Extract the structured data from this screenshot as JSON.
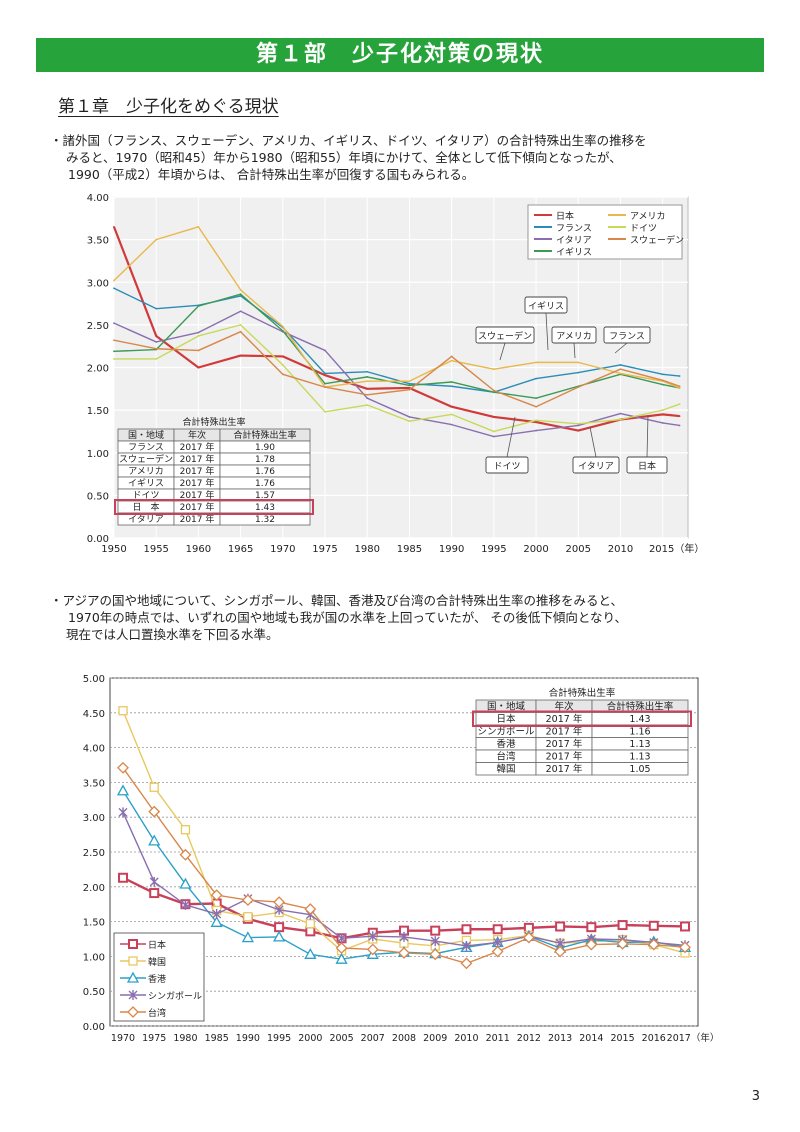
{
  "banner": "第１部　少子化対策の現状",
  "chapter": "第１章　少子化をめぐる現状",
  "para1": {
    "line1": "・諸外国（フランス、スウェーデン、アメリカ、イギリス、ドイツ、イタリア）の合計特殊出生率の推移を",
    "line2": "みると、1970（昭和45）年から1980（昭和55）年頃にかけて、全体として低下傾向となったが、",
    "line3": "1990（平成2）年頃からは、 合計特殊出生率が回復する国もみられる。"
  },
  "para2": {
    "line1": "・アジアの国や地域について、シンガポール、韓国、香港及び台湾の合計特殊出生率の推移をみると、",
    "line2": "1970年の時点では、いずれの国や地域も我が国の水準を上回っていたが、 その後低下傾向となり、",
    "line3": "現在では人口置換水準を下回る水準。"
  },
  "page_number": "3",
  "chart_data": [
    {
      "type": "line",
      "x": [
        1950,
        1955,
        1960,
        1965,
        1970,
        1975,
        1980,
        1985,
        1990,
        1995,
        2000,
        2005,
        2010,
        2015,
        2017
      ],
      "x_ticks": [
        "1950",
        "1955",
        "1960",
        "1965",
        "1970",
        "1975",
        "1980",
        "1985",
        "1990",
        "1995",
        "2000",
        "2005",
        "2010",
        "2015（年）"
      ],
      "y_ticks": [
        "0.00",
        "0.50",
        "1.00",
        "1.50",
        "2.00",
        "2.50",
        "3.00",
        "3.50",
        "4.00"
      ],
      "ylim": [
        0,
        4.0
      ],
      "grid": true,
      "legend": "top-right",
      "series": [
        {
          "name": "日本",
          "color": "#d03a3a",
          "values": [
            3.65,
            2.37,
            2.0,
            2.14,
            2.13,
            1.91,
            1.75,
            1.76,
            1.54,
            1.42,
            1.36,
            1.26,
            1.39,
            1.45,
            1.43
          ]
        },
        {
          "name": "フランス",
          "color": "#2a8cb8",
          "values": [
            2.93,
            2.69,
            2.73,
            2.84,
            2.47,
            1.93,
            1.95,
            1.81,
            1.78,
            1.71,
            1.87,
            1.94,
            2.03,
            1.92,
            1.9
          ]
        },
        {
          "name": "イタリア",
          "color": "#8a6fb0",
          "values": [
            2.52,
            2.3,
            2.41,
            2.66,
            2.42,
            2.2,
            1.64,
            1.42,
            1.33,
            1.19,
            1.26,
            1.32,
            1.46,
            1.35,
            1.32
          ]
        },
        {
          "name": "イギリス",
          "color": "#3c9a52",
          "values": [
            2.19,
            2.21,
            2.72,
            2.86,
            2.43,
            1.81,
            1.89,
            1.79,
            1.83,
            1.71,
            1.64,
            1.78,
            1.92,
            1.8,
            1.76
          ]
        },
        {
          "name": "アメリカ",
          "color": "#e8b84a",
          "values": [
            3.02,
            3.5,
            3.65,
            2.91,
            2.48,
            1.77,
            1.84,
            1.84,
            2.08,
            1.98,
            2.06,
            2.06,
            1.93,
            1.84,
            1.76
          ]
        },
        {
          "name": "ドイツ",
          "color": "#c8d85a",
          "values": [
            2.1,
            2.1,
            2.37,
            2.5,
            2.03,
            1.48,
            1.56,
            1.37,
            1.45,
            1.25,
            1.38,
            1.34,
            1.39,
            1.5,
            1.57
          ]
        },
        {
          "name": "スウェーデン",
          "color": "#d8864a",
          "values": [
            2.32,
            2.22,
            2.2,
            2.42,
            1.92,
            1.77,
            1.68,
            1.74,
            2.13,
            1.73,
            1.54,
            1.77,
            1.98,
            1.85,
            1.78
          ]
        }
      ],
      "callouts": [
        "イギリス",
        "スウェーデン",
        "アメリカ",
        "フランス",
        "ドイツ",
        "イタリア",
        "日本"
      ],
      "table": {
        "title": "合計特殊出生率",
        "headers": [
          "国・地域",
          "年次",
          "合計特殊出生率"
        ],
        "rows": [
          [
            "フランス",
            "2017 年",
            "1.90"
          ],
          [
            "スウェーデン",
            "2017 年",
            "1.78"
          ],
          [
            "アメリカ",
            "2017 年",
            "1.76"
          ],
          [
            "イギリス",
            "2017 年",
            "1.76"
          ],
          [
            "ドイツ",
            "2017 年",
            "1.57"
          ],
          [
            "日　本",
            "2017 年",
            "1.43"
          ],
          [
            "イタリア",
            "2017 年",
            "1.32"
          ]
        ],
        "highlight_row": 5
      }
    },
    {
      "type": "line",
      "categories": [
        "1970",
        "1975",
        "1980",
        "1985",
        "1990",
        "1995",
        "2000",
        "2005",
        "2007",
        "2008",
        "2009",
        "2010",
        "2011",
        "2012",
        "2013",
        "2014",
        "2015",
        "2016",
        "2017（年）"
      ],
      "y_ticks": [
        "0.00",
        "0.50",
        "1.00",
        "1.50",
        "2.00",
        "2.50",
        "3.00",
        "3.50",
        "4.00",
        "4.50",
        "5.00"
      ],
      "ylim": [
        0,
        5.0
      ],
      "grid": true,
      "legend": "bottom-left",
      "series": [
        {
          "name": "日本",
          "color": "#c8405a",
          "marker": "square",
          "values": [
            2.13,
            1.91,
            1.75,
            1.76,
            1.54,
            1.42,
            1.36,
            1.26,
            1.34,
            1.37,
            1.37,
            1.39,
            1.39,
            1.41,
            1.43,
            1.42,
            1.45,
            1.44,
            1.43
          ]
        },
        {
          "name": "韓国",
          "color": "#e8c860",
          "marker": "square-open",
          "values": [
            4.53,
            3.43,
            2.82,
            1.66,
            1.57,
            1.63,
            1.47,
            1.08,
            1.25,
            1.19,
            1.15,
            1.23,
            1.24,
            1.3,
            1.19,
            1.21,
            1.24,
            1.17,
            1.05
          ]
        },
        {
          "name": "香港",
          "color": "#2aa0c8",
          "marker": "triangle",
          "values": [
            3.38,
            2.66,
            2.04,
            1.49,
            1.27,
            1.28,
            1.03,
            0.96,
            1.03,
            1.06,
            1.04,
            1.13,
            1.2,
            1.29,
            1.12,
            1.24,
            1.2,
            1.21,
            1.13
          ]
        },
        {
          "name": "シンガポール",
          "color": "#8a6fb0",
          "marker": "star",
          "values": [
            3.07,
            2.07,
            1.74,
            1.61,
            1.83,
            1.67,
            1.6,
            1.26,
            1.29,
            1.28,
            1.22,
            1.15,
            1.2,
            1.29,
            1.19,
            1.25,
            1.24,
            1.2,
            1.16
          ]
        },
        {
          "name": "台湾",
          "color": "#d8864a",
          "marker": "diamond",
          "values": [
            3.71,
            3.08,
            2.46,
            1.88,
            1.81,
            1.78,
            1.68,
            1.12,
            1.1,
            1.05,
            1.03,
            0.9,
            1.07,
            1.27,
            1.07,
            1.17,
            1.18,
            1.17,
            1.13
          ]
        }
      ],
      "table": {
        "title": "合計特殊出生率",
        "headers": [
          "国・地域",
          "年次",
          "合計特殊出生率"
        ],
        "rows": [
          [
            "日本",
            "2017 年",
            "1.43"
          ],
          [
            "シンガポール",
            "2017 年",
            "1.16"
          ],
          [
            "香港",
            "2017 年",
            "1.13"
          ],
          [
            "台湾",
            "2017 年",
            "1.13"
          ],
          [
            "韓国",
            "2017 年",
            "1.05"
          ]
        ],
        "highlight_row": 0
      }
    }
  ]
}
